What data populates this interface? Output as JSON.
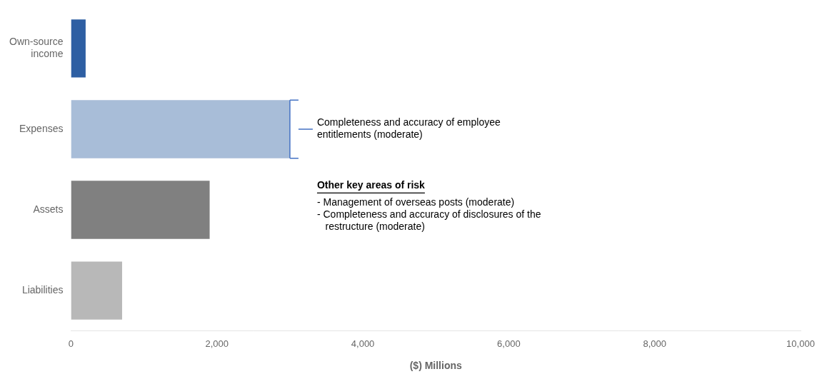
{
  "chart_data": {
    "type": "bar",
    "orientation": "horizontal",
    "categories": [
      "Own-source\nincome",
      "Expenses",
      "Assets",
      "Liabilities"
    ],
    "values": [
      200,
      3000,
      1900,
      700
    ],
    "colors": [
      "#2E5FA3",
      "#A8BDD8",
      "#808080",
      "#B8B8B8"
    ],
    "xlabel": "($) Millions",
    "xlim": [
      0,
      10000
    ],
    "xticks": [
      0,
      {
        "value": 2000,
        "label": "2,000"
      },
      {
        "value": 4000,
        "label": "4,000"
      },
      {
        "value": 6000,
        "label": "6,000"
      },
      {
        "value": 8000,
        "label": "8,000"
      },
      {
        "value": 10000,
        "label": "10,000"
      }
    ],
    "grid": false,
    "annotations": [
      {
        "text": "Completeness and accuracy of employee\nentitlements (moderate)",
        "category": "Expenses",
        "color": "#4472C4"
      },
      {
        "text": "Other key areas of risk"
      },
      {
        "text": "- Management of overseas posts (moderate)\n- Completeness and accuracy of disclosures of the\n   restructure (moderate)"
      }
    ]
  }
}
